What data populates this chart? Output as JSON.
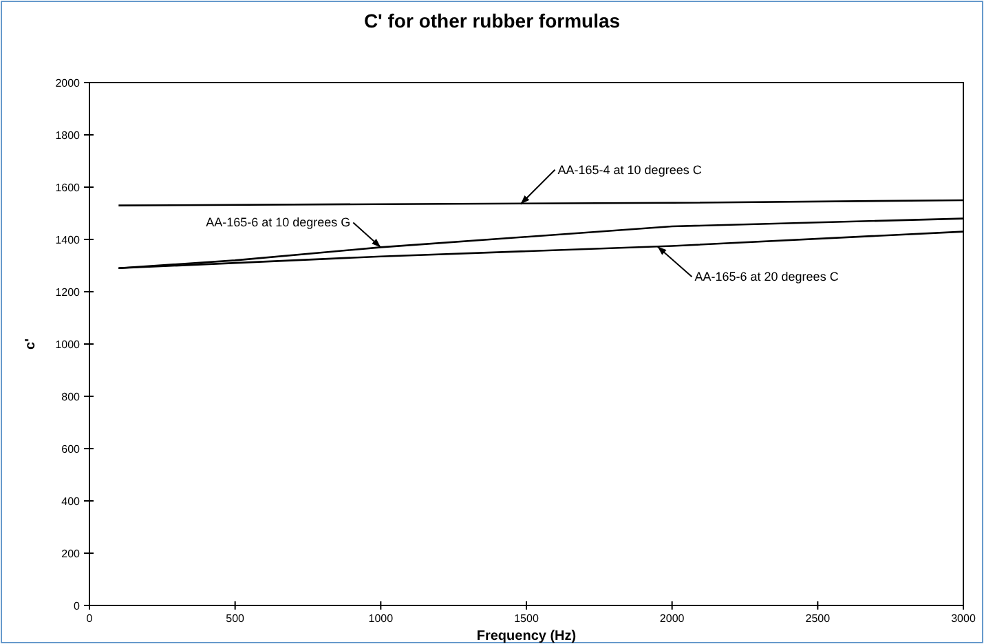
{
  "chart_data": {
    "type": "line",
    "title": "C' for other rubber formulas",
    "xlabel": "Frequency (Hz)",
    "ylabel": "c'",
    "xlim": [
      0,
      3000
    ],
    "xticks": [
      0,
      500,
      1000,
      1500,
      2000,
      2500,
      3000
    ],
    "ylim": [
      0,
      2000
    ],
    "yticks": [
      0,
      200,
      400,
      600,
      800,
      1000,
      1200,
      1400,
      1600,
      1800,
      2000
    ],
    "grid": false,
    "line_style": "solid",
    "series": [
      {
        "color": "#000000",
        "x": [
          100,
          1000,
          2000,
          3000
        ],
        "values": [
          1530,
          1535,
          1540,
          1550
        ]
      },
      {
        "color": "#000000",
        "x": [
          100,
          500,
          1000,
          1500,
          2000,
          3000
        ],
        "values": [
          1290,
          1320,
          1370,
          1410,
          1450,
          1480
        ]
      },
      {
        "color": "#000000",
        "x": [
          100,
          1000,
          2000,
          3000
        ],
        "values": [
          1290,
          1335,
          1375,
          1430
        ]
      }
    ],
    "annotations": [
      {
        "text": "AA-165-4 at 10 degrees C",
        "x": 1480,
        "y": 1535
      },
      {
        "text": "AA-165-6 at 10 degrees G",
        "x": 1000,
        "y": 1370
      },
      {
        "text": "AA-165-6 at 20 degrees C",
        "x": 1950,
        "y": 1373
      }
    ]
  }
}
